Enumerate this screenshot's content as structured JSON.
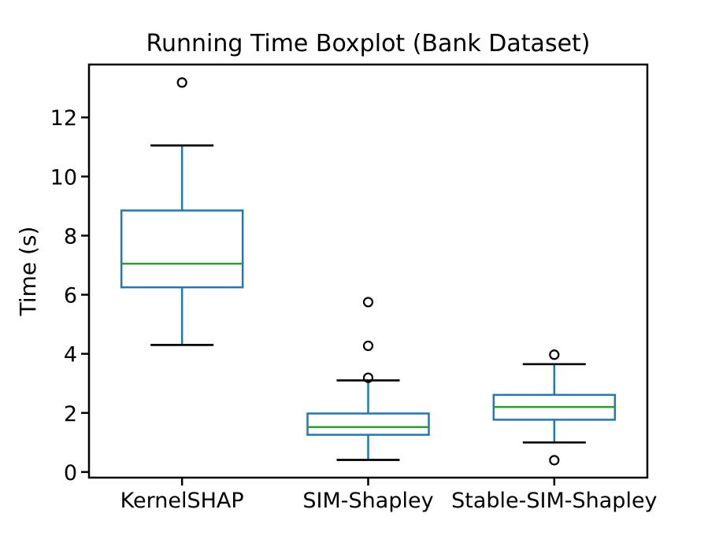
{
  "chart_data": {
    "type": "boxplot",
    "title": "Running Time Boxplot (Bank Dataset)",
    "xlabel": "",
    "ylabel": "Time (s)",
    "categories": [
      "KernelSHAP",
      "SIM-Shapley",
      "Stable-SIM-Shapley"
    ],
    "series": [
      {
        "name": "KernelSHAP",
        "whisker_low": 4.3,
        "q1": 6.25,
        "median": 7.05,
        "q3": 8.85,
        "whisker_high": 11.05,
        "outliers": [
          13.18
        ]
      },
      {
        "name": "SIM-Shapley",
        "whisker_low": 0.41,
        "q1": 1.26,
        "median": 1.52,
        "q3": 1.98,
        "whisker_high": 3.1,
        "outliers": [
          3.19,
          4.27,
          5.75
        ]
      },
      {
        "name": "Stable-SIM-Shapley",
        "whisker_low": 1.0,
        "q1": 1.77,
        "median": 2.2,
        "q3": 2.61,
        "whisker_high": 3.65,
        "outliers": [
          0.4,
          3.97
        ]
      }
    ],
    "yticks": [
      0,
      2,
      4,
      6,
      8,
      10,
      12
    ],
    "ylim": [
      -0.19,
      13.79
    ],
    "grid": false,
    "legend": "none",
    "colors": {
      "box": "#1f77b4",
      "whisker": "#1f77b4",
      "median": "#2ca02c",
      "cap": "#000000",
      "outlier": "#000000",
      "spine": "#000000",
      "text": "#000000",
      "background": "#ffffff"
    }
  }
}
